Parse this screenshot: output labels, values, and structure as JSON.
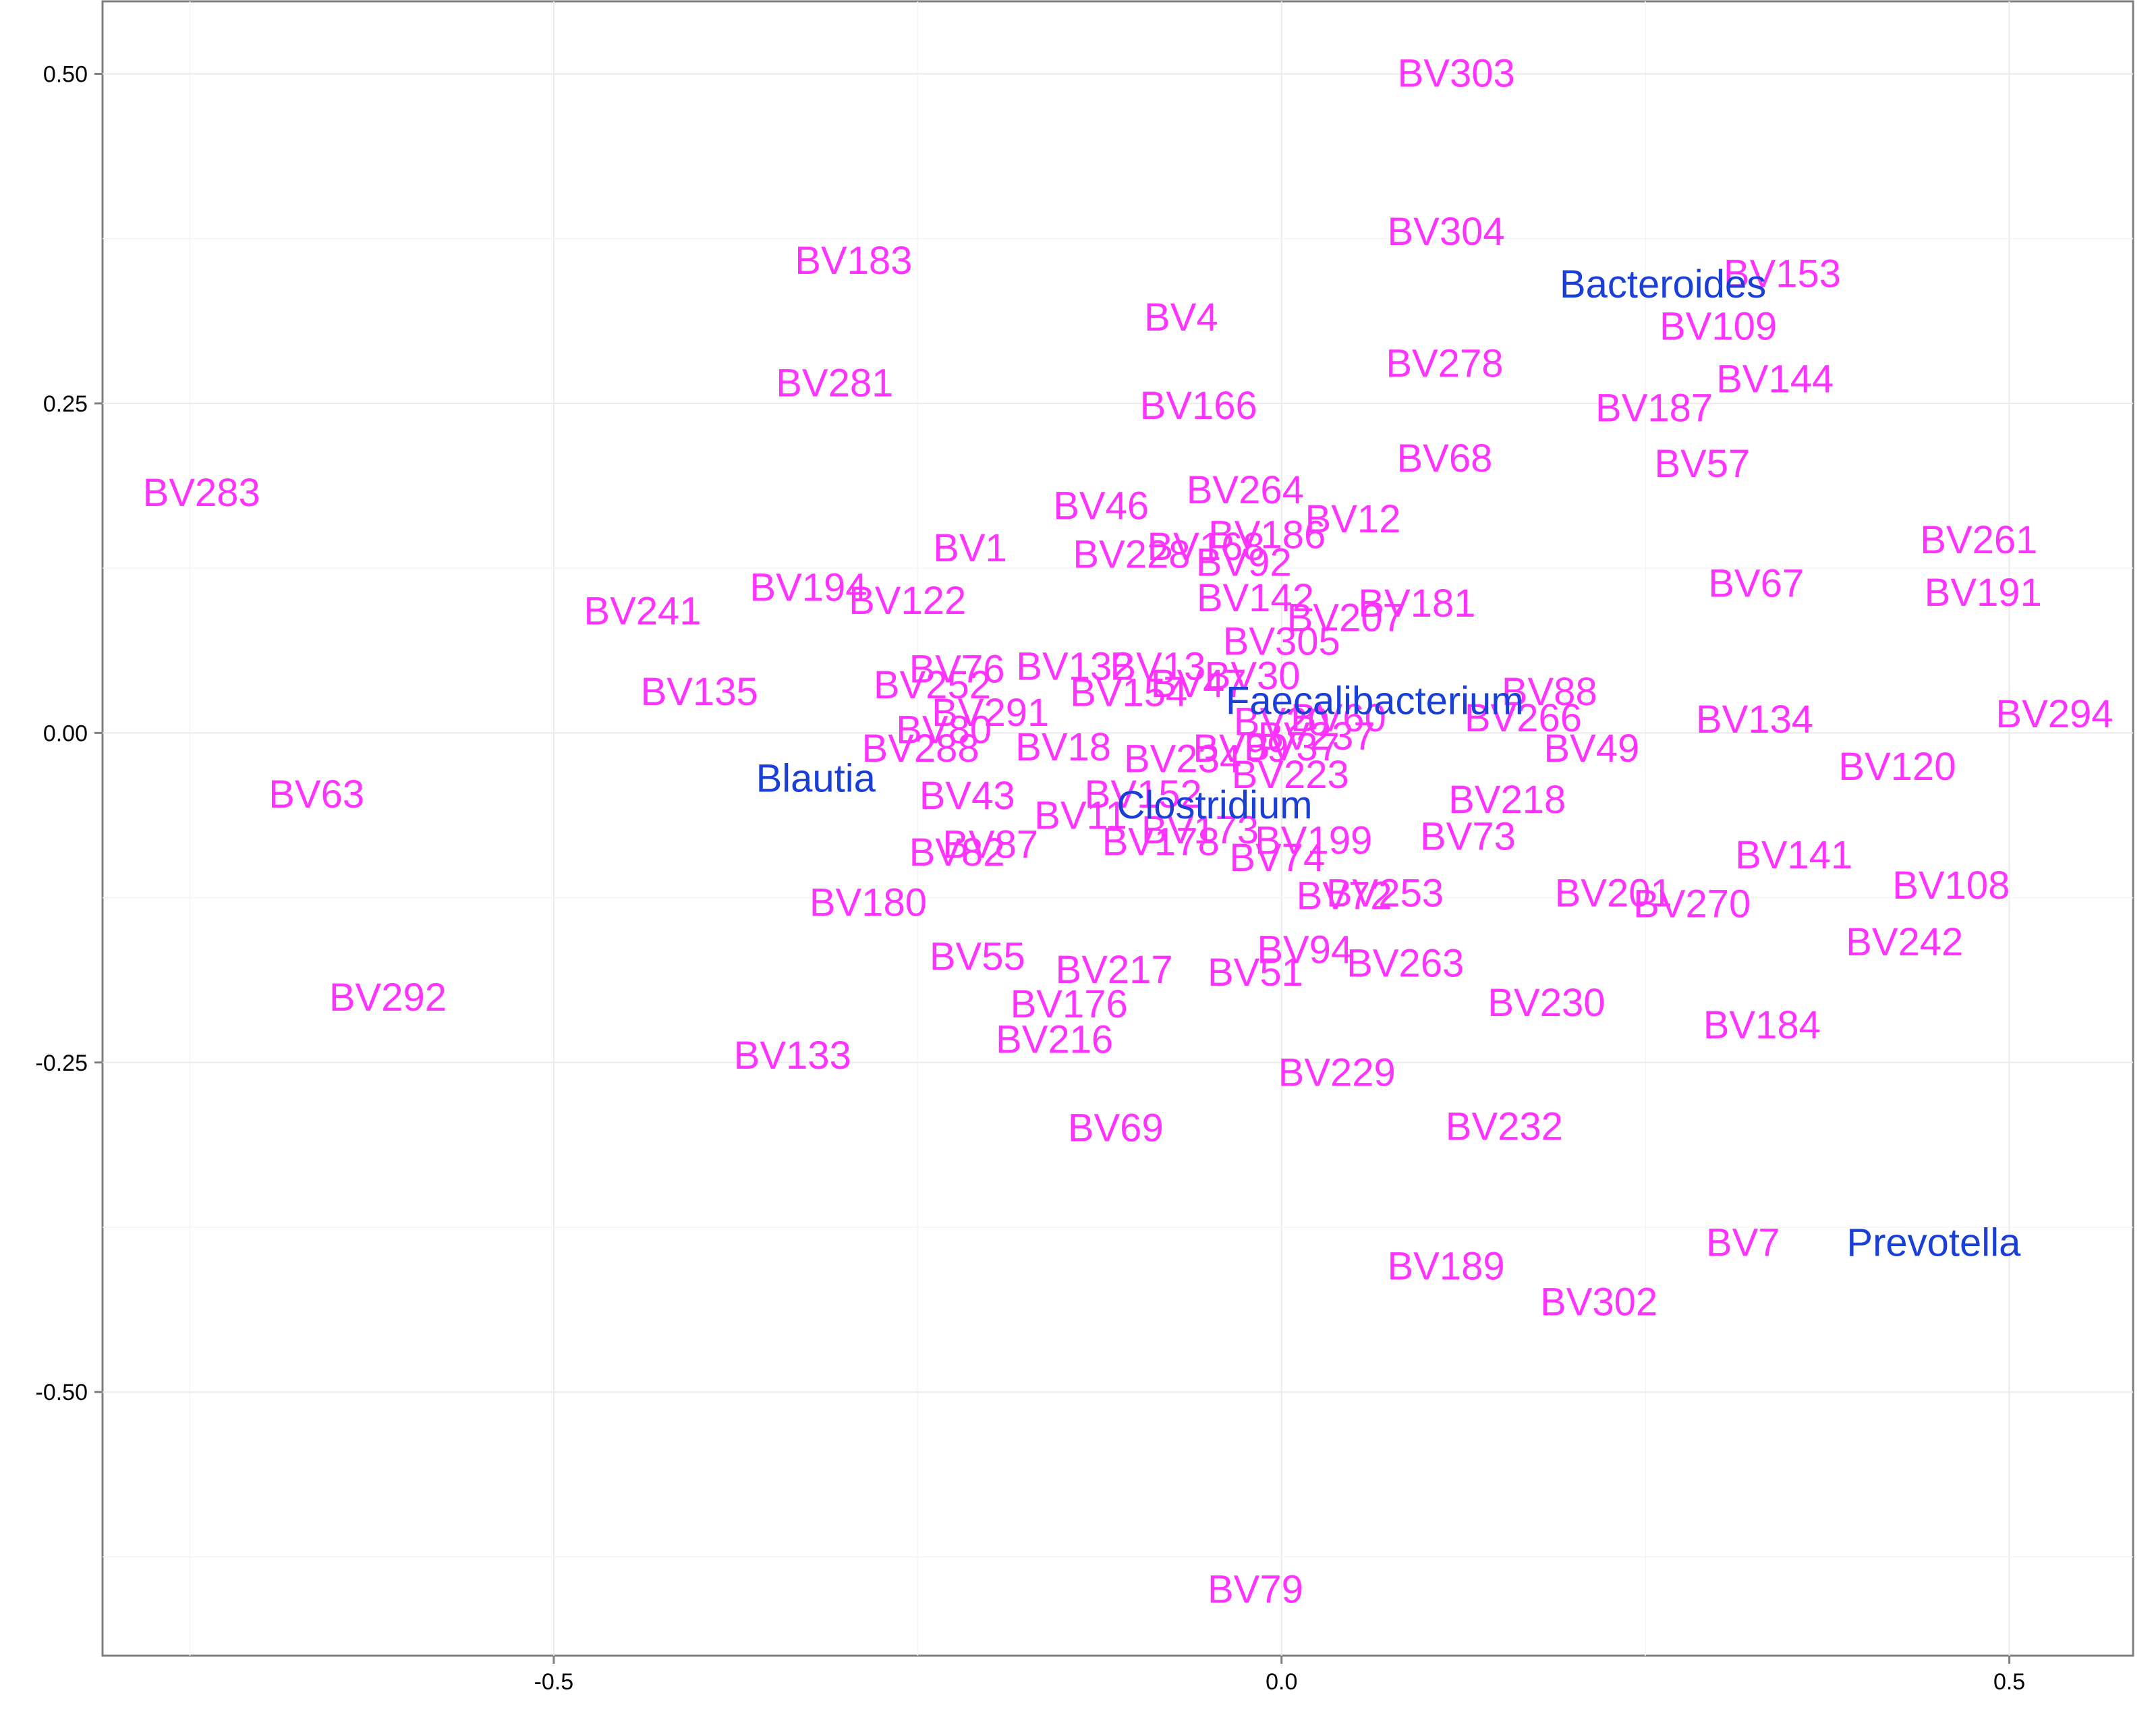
{
  "chart_data": {
    "type": "scatter",
    "title": "",
    "xlabel": "",
    "ylabel": "",
    "xlim": [
      -0.81,
      0.585
    ],
    "ylim": [
      -0.7,
      0.555
    ],
    "grid": true,
    "x_ticks": [
      {
        "value": -0.5,
        "label": "-0.5"
      },
      {
        "value": 0.0,
        "label": "0.0"
      },
      {
        "value": 0.5,
        "label": "0.5"
      }
    ],
    "y_ticks": [
      {
        "value": 0.5,
        "label": "0.50"
      },
      {
        "value": 0.25,
        "label": "0.25"
      },
      {
        "value": 0.0,
        "label": "0.00"
      },
      {
        "value": -0.25,
        "label": "-0.25"
      },
      {
        "value": -0.5,
        "label": "-0.50"
      }
    ],
    "series": [
      {
        "color": "#ff33ff",
        "points": [
          {
            "label": "BV303",
            "x": 0.12,
            "y": 0.5
          },
          {
            "label": "BV304",
            "x": 0.113,
            "y": 0.38
          },
          {
            "label": "BV183",
            "x": -0.294,
            "y": 0.358
          },
          {
            "label": "BV153",
            "x": 0.344,
            "y": 0.348
          },
          {
            "label": "BV4",
            "x": -0.069,
            "y": 0.315
          },
          {
            "label": "BV109",
            "x": 0.3,
            "y": 0.308
          },
          {
            "label": "BV144",
            "x": 0.339,
            "y": 0.268
          },
          {
            "label": "BV281",
            "x": -0.307,
            "y": 0.265
          },
          {
            "label": "BV278",
            "x": 0.112,
            "y": 0.28
          },
          {
            "label": "BV187",
            "x": 0.256,
            "y": 0.246
          },
          {
            "label": "BV166",
            "x": -0.057,
            "y": 0.248
          },
          {
            "label": "BV68",
            "x": 0.112,
            "y": 0.208
          },
          {
            "label": "BV57",
            "x": 0.289,
            "y": 0.204
          },
          {
            "label": "BV283",
            "x": -0.742,
            "y": 0.182
          },
          {
            "label": "BV264",
            "x": -0.025,
            "y": 0.184
          },
          {
            "label": "BV46",
            "x": -0.124,
            "y": 0.172
          },
          {
            "label": "BV12",
            "x": 0.049,
            "y": 0.162
          },
          {
            "label": "BV261",
            "x": 0.479,
            "y": 0.146
          },
          {
            "label": "BV186",
            "x": -0.01,
            "y": 0.15
          },
          {
            "label": "BV168",
            "x": -0.052,
            "y": 0.141
          },
          {
            "label": "BV1",
            "x": -0.214,
            "y": 0.14
          },
          {
            "label": "BV228",
            "x": -0.103,
            "y": 0.135
          },
          {
            "label": "BV92",
            "x": -0.026,
            "y": 0.129
          },
          {
            "label": "BV191",
            "x": 0.482,
            "y": 0.106
          },
          {
            "label": "BV194",
            "x": -0.325,
            "y": 0.11
          },
          {
            "label": "BV67",
            "x": 0.326,
            "y": 0.113
          },
          {
            "label": "BV142",
            "x": -0.018,
            "y": 0.102
          },
          {
            "label": "BV122",
            "x": -0.257,
            "y": 0.1
          },
          {
            "label": "BV181",
            "x": 0.093,
            "y": 0.098
          },
          {
            "label": "BV241",
            "x": -0.439,
            "y": 0.092
          },
          {
            "label": "BV207",
            "x": 0.044,
            "y": 0.087
          },
          {
            "label": "BV305",
            "x": 0.0,
            "y": 0.069
          },
          {
            "label": "BV76",
            "x": -0.223,
            "y": 0.048
          },
          {
            "label": "BV132",
            "x": -0.142,
            "y": 0.05
          },
          {
            "label": "BV13",
            "x": -0.085,
            "y": 0.05
          },
          {
            "label": "BV30",
            "x": -0.02,
            "y": 0.043
          },
          {
            "label": "BV47",
            "x": -0.057,
            "y": 0.037
          },
          {
            "label": "BV88",
            "x": 0.184,
            "y": 0.031
          },
          {
            "label": "BV252",
            "x": -0.24,
            "y": 0.036
          },
          {
            "label": "BV135",
            "x": -0.4,
            "y": 0.031
          },
          {
            "label": "BV154",
            "x": -0.105,
            "y": 0.03
          },
          {
            "label": "BV291",
            "x": -0.2,
            "y": 0.015
          },
          {
            "label": "BV266",
            "x": 0.166,
            "y": 0.011
          },
          {
            "label": "BV294",
            "x": 0.531,
            "y": 0.014
          },
          {
            "label": "BV60",
            "x": 0.039,
            "y": 0.011
          },
          {
            "label": "BV134",
            "x": 0.325,
            "y": 0.01
          },
          {
            "label": "BV20",
            "x": 0.0,
            "y": 0.008
          },
          {
            "label": "BV80",
            "x": -0.232,
            "y": 0.002
          },
          {
            "label": "BV237",
            "x": 0.024,
            "y": -0.003
          },
          {
            "label": "BV18",
            "x": -0.15,
            "y": -0.011
          },
          {
            "label": "BV288",
            "x": -0.248,
            "y": -0.012
          },
          {
            "label": "BV49",
            "x": 0.213,
            "y": -0.012
          },
          {
            "label": "BV99",
            "x": -0.028,
            "y": -0.012
          },
          {
            "label": "BV37",
            "x": 0.007,
            "y": -0.011
          },
          {
            "label": "BV234",
            "x": -0.068,
            "y": -0.02
          },
          {
            "label": "BV120",
            "x": 0.423,
            "y": -0.026
          },
          {
            "label": "BV223",
            "x": 0.006,
            "y": -0.032
          },
          {
            "label": "BV43",
            "x": -0.216,
            "y": -0.048
          },
          {
            "label": "BV63",
            "x": -0.663,
            "y": -0.047
          },
          {
            "label": "BV218",
            "x": 0.155,
            "y": -0.051
          },
          {
            "label": "BV152",
            "x": -0.095,
            "y": -0.047
          },
          {
            "label": "BV11",
            "x": -0.138,
            "y": -0.063
          },
          {
            "label": "BV73",
            "x": 0.128,
            "y": -0.079
          },
          {
            "label": "BV199",
            "x": 0.022,
            "y": -0.082
          },
          {
            "label": "BV173",
            "x": -0.056,
            "y": -0.074
          },
          {
            "label": "BV178",
            "x": -0.083,
            "y": -0.083
          },
          {
            "label": "BV87",
            "x": -0.2,
            "y": -0.085
          },
          {
            "label": "BV82",
            "x": -0.223,
            "y": -0.091
          },
          {
            "label": "BV74",
            "x": -0.003,
            "y": -0.095
          },
          {
            "label": "BV141",
            "x": 0.352,
            "y": -0.093
          },
          {
            "label": "BV108",
            "x": 0.46,
            "y": -0.116
          },
          {
            "label": "BV253",
            "x": 0.071,
            "y": -0.122
          },
          {
            "label": "BV72",
            "x": 0.043,
            "y": -0.124
          },
          {
            "label": "BV201",
            "x": 0.228,
            "y": -0.122
          },
          {
            "label": "BV180",
            "x": -0.284,
            "y": -0.129
          },
          {
            "label": "BV270",
            "x": 0.282,
            "y": -0.13
          },
          {
            "label": "BV242",
            "x": 0.428,
            "y": -0.159
          },
          {
            "label": "BV94",
            "x": 0.016,
            "y": -0.165
          },
          {
            "label": "BV55",
            "x": -0.209,
            "y": -0.17
          },
          {
            "label": "BV263",
            "x": 0.085,
            "y": -0.175
          },
          {
            "label": "BV217",
            "x": -0.115,
            "y": -0.18
          },
          {
            "label": "BV51",
            "x": -0.018,
            "y": -0.182
          },
          {
            "label": "BV176",
            "x": -0.146,
            "y": -0.206
          },
          {
            "label": "BV230",
            "x": 0.182,
            "y": -0.205
          },
          {
            "label": "BV292",
            "x": -0.614,
            "y": -0.201
          },
          {
            "label": "BV184",
            "x": 0.33,
            "y": -0.222
          },
          {
            "label": "BV216",
            "x": -0.156,
            "y": -0.233
          },
          {
            "label": "BV133",
            "x": -0.336,
            "y": -0.245
          },
          {
            "label": "BV229",
            "x": 0.038,
            "y": -0.258
          },
          {
            "label": "BV69",
            "x": -0.114,
            "y": -0.3
          },
          {
            "label": "BV232",
            "x": 0.153,
            "y": -0.299
          },
          {
            "label": "BV7",
            "x": 0.317,
            "y": -0.387
          },
          {
            "label": "BV189",
            "x": 0.113,
            "y": -0.405
          },
          {
            "label": "BV302",
            "x": 0.218,
            "y": -0.432
          },
          {
            "label": "BV79",
            "x": -0.018,
            "y": -0.65
          }
        ]
      },
      {
        "color": "#1a3fd6",
        "points": [
          {
            "label": "Bacteroides",
            "x": 0.262,
            "y": 0.34
          },
          {
            "label": "Faecalibacterium",
            "x": 0.064,
            "y": 0.024
          },
          {
            "label": "Blautia",
            "x": -0.32,
            "y": -0.035
          },
          {
            "label": "Clostridium",
            "x": -0.046,
            "y": -0.055
          },
          {
            "label": "Prevotella",
            "x": 0.448,
            "y": -0.387
          }
        ]
      }
    ]
  }
}
